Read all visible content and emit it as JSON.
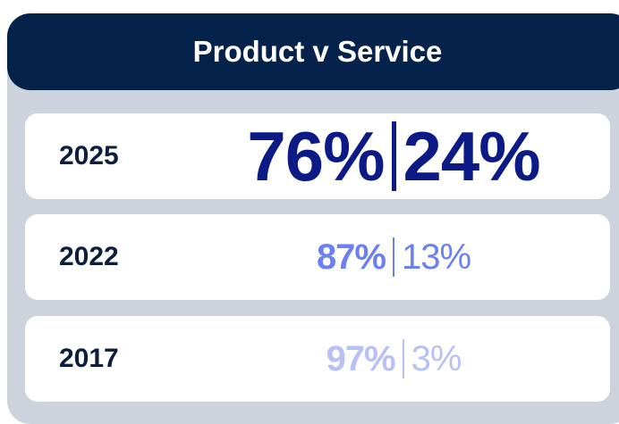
{
  "header": {
    "title": "Product v Service"
  },
  "rows": [
    {
      "year": "2025",
      "product": "76%",
      "service": "24%"
    },
    {
      "year": "2022",
      "product": "87%",
      "service": "13%"
    },
    {
      "year": "2017",
      "product": "97%",
      "service": "3%"
    }
  ]
}
